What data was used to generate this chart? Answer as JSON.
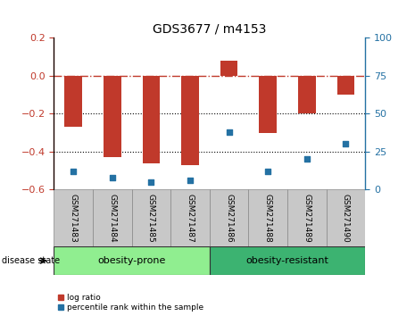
{
  "title": "GDS3677 / m4153",
  "categories": [
    "GSM271483",
    "GSM271484",
    "GSM271485",
    "GSM271487",
    "GSM271486",
    "GSM271488",
    "GSM271489",
    "GSM271490"
  ],
  "log_ratio": [
    -0.27,
    -0.43,
    -0.46,
    -0.47,
    0.08,
    -0.3,
    -0.2,
    -0.1
  ],
  "percentile_rank": [
    12,
    8,
    5,
    6,
    38,
    12,
    20,
    30
  ],
  "ylim_left": [
    -0.6,
    0.2
  ],
  "ylim_right": [
    0,
    100
  ],
  "yticks_left": [
    -0.6,
    -0.4,
    -0.2,
    0.0,
    0.2
  ],
  "yticks_right": [
    0,
    25,
    50,
    75,
    100
  ],
  "bar_color": "#C0392B",
  "dot_color": "#2471A3",
  "hline_color": "#C0392B",
  "dotline_color": "black",
  "group1_color": "#90EE90",
  "group2_color": "#3CB371",
  "cat_box_color": "#C8C8C8",
  "groups": [
    {
      "label": "obesity-prone",
      "start": 0,
      "end": 4
    },
    {
      "label": "obesity-resistant",
      "start": 4,
      "end": 8
    }
  ],
  "disease_state_label": "disease state",
  "legend_items": [
    {
      "label": "log ratio",
      "color": "#C0392B"
    },
    {
      "label": "percentile rank within the sample",
      "color": "#2471A3"
    }
  ],
  "bar_width": 0.45
}
